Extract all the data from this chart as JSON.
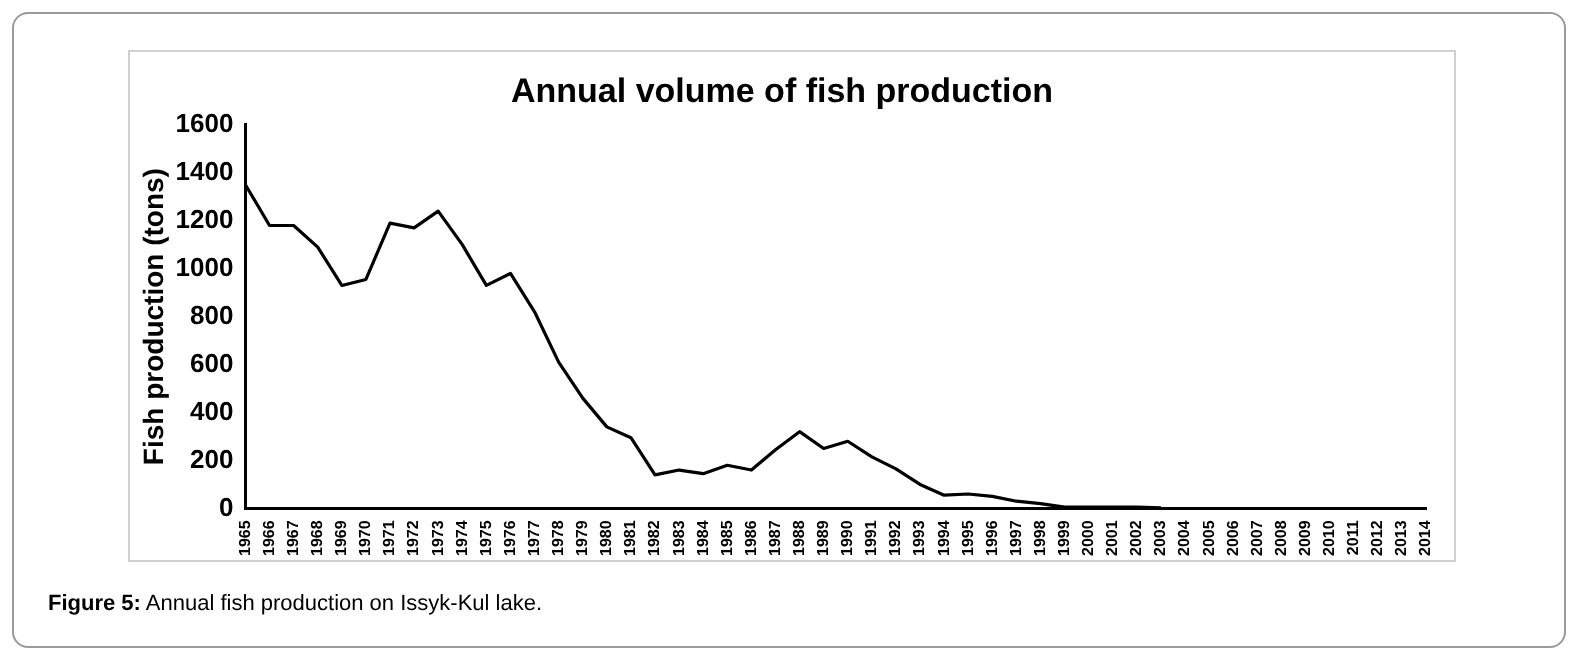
{
  "chart_data": {
    "type": "line",
    "title": "Annual volume of fish production",
    "ylabel": "Fish production (tons)",
    "categories": [
      "1965",
      "1966",
      "1967",
      "1968",
      "1969",
      "1970",
      "1971",
      "1972",
      "1973",
      "1974",
      "1975",
      "1976",
      "1977",
      "1978",
      "1979",
      "1980",
      "1981",
      "1982",
      "1983",
      "1984",
      "1985",
      "1986",
      "1987",
      "1988",
      "1989",
      "1990",
      "1991",
      "1992",
      "1993",
      "1994",
      "1995",
      "1996",
      "1997",
      "1998",
      "1999",
      "2000",
      "2001",
      "2002",
      "2003",
      "2004",
      "2005",
      "2006",
      "2007",
      "2008",
      "2009",
      "2010",
      "2011",
      "2012",
      "2013",
      "2014"
    ],
    "series": [
      {
        "color": "#000000",
        "values": [
          1350,
          1180,
          1180,
          1090,
          930,
          955,
          1190,
          1170,
          1240,
          1100,
          930,
          980,
          820,
          610,
          460,
          340,
          295,
          140,
          160,
          145,
          180,
          160,
          245,
          320,
          250,
          280,
          215,
          165,
          100,
          55,
          60,
          50,
          30,
          20,
          5,
          5,
          5,
          5,
          2,
          null,
          null,
          null,
          null,
          null,
          null,
          null,
          null,
          null,
          null,
          null
        ]
      }
    ],
    "ylim": [
      0,
      1600
    ],
    "yticks": [
      0,
      200,
      400,
      600,
      800,
      1000,
      1200,
      1400,
      1600
    ],
    "grid": false,
    "legend": false,
    "marker": "none",
    "line_style": "solid",
    "annotations": [
      "Figure 5: Annual fish production on Issyk-Kul lake."
    ]
  }
}
